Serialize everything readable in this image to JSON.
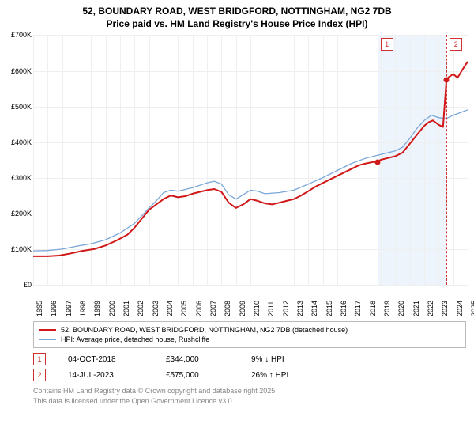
{
  "title_line1": "52, BOUNDARY ROAD, WEST BRIDGFORD, NOTTINGHAM, NG2 7DB",
  "title_line2": "Price paid vs. HM Land Registry's House Price Index (HPI)",
  "chart": {
    "type": "line",
    "background_color": "#ffffff",
    "grid_color": "#efefef",
    "marker_band_color": "#eef4fb",
    "marker_edge_color": "#d03030",
    "x_start_year": 1995,
    "x_end_year": 2025,
    "x_ticks": [
      1995,
      1996,
      1997,
      1998,
      1999,
      2000,
      2001,
      2002,
      2003,
      2004,
      2005,
      2006,
      2007,
      2008,
      2009,
      2010,
      2011,
      2012,
      2013,
      2014,
      2015,
      2016,
      2017,
      2018,
      2019,
      2020,
      2021,
      2022,
      2023,
      2024,
      2025
    ],
    "y_min": 0,
    "y_max": 700,
    "y_step": 100,
    "y_ticks": [
      "£0",
      "£100K",
      "£200K",
      "£300K",
      "£400K",
      "£500K",
      "£600K",
      "£700K"
    ],
    "x_label_fontsize": 9,
    "y_label_fontsize": 9,
    "series": [
      {
        "name": "property",
        "label": "52, BOUNDARY ROAD, WEST BRIDGFORD, NOTTINGHAM, NG2 7DB (detached house)",
        "color": "#d11919",
        "width": 2,
        "data": [
          [
            1995.0,
            80
          ],
          [
            1996.0,
            80
          ],
          [
            1996.8,
            82
          ],
          [
            1997.6,
            88
          ],
          [
            1998.4,
            95
          ],
          [
            1999.2,
            100
          ],
          [
            2000.0,
            110
          ],
          [
            2000.8,
            125
          ],
          [
            2001.5,
            140
          ],
          [
            2002.0,
            160
          ],
          [
            2002.5,
            185
          ],
          [
            2003.0,
            210
          ],
          [
            2003.5,
            225
          ],
          [
            2004.0,
            240
          ],
          [
            2004.5,
            250
          ],
          [
            2005.0,
            245
          ],
          [
            2005.5,
            248
          ],
          [
            2006.0,
            255
          ],
          [
            2006.5,
            260
          ],
          [
            2007.0,
            265
          ],
          [
            2007.5,
            268
          ],
          [
            2008.0,
            260
          ],
          [
            2008.5,
            230
          ],
          [
            2009.0,
            215
          ],
          [
            2009.5,
            225
          ],
          [
            2010.0,
            240
          ],
          [
            2010.5,
            235
          ],
          [
            2011.0,
            228
          ],
          [
            2011.5,
            225
          ],
          [
            2012.0,
            230
          ],
          [
            2012.5,
            235
          ],
          [
            2013.0,
            240
          ],
          [
            2013.5,
            250
          ],
          [
            2014.0,
            262
          ],
          [
            2014.5,
            275
          ],
          [
            2015.0,
            285
          ],
          [
            2015.5,
            295
          ],
          [
            2016.0,
            305
          ],
          [
            2016.5,
            315
          ],
          [
            2017.0,
            325
          ],
          [
            2017.5,
            335
          ],
          [
            2018.0,
            340
          ],
          [
            2018.5,
            344
          ],
          [
            2018.76,
            344
          ],
          [
            2019.0,
            350
          ],
          [
            2019.5,
            355
          ],
          [
            2020.0,
            360
          ],
          [
            2020.5,
            370
          ],
          [
            2021.0,
            395
          ],
          [
            2021.5,
            420
          ],
          [
            2022.0,
            445
          ],
          [
            2022.3,
            455
          ],
          [
            2022.6,
            460
          ],
          [
            2023.0,
            448
          ],
          [
            2023.3,
            442
          ],
          [
            2023.54,
            575
          ],
          [
            2023.7,
            582
          ],
          [
            2024.0,
            590
          ],
          [
            2024.3,
            580
          ],
          [
            2024.6,
            600
          ],
          [
            2025.0,
            625
          ]
        ]
      },
      {
        "name": "hpi",
        "label": "HPI: Average price, detached house, Rushcliffe",
        "color": "#7aa7d8",
        "width": 1.3,
        "data": [
          [
            1995.0,
            95
          ],
          [
            1996.0,
            96
          ],
          [
            1997.0,
            100
          ],
          [
            1998.0,
            108
          ],
          [
            1999.0,
            115
          ],
          [
            2000.0,
            126
          ],
          [
            2001.0,
            145
          ],
          [
            2002.0,
            172
          ],
          [
            2003.0,
            215
          ],
          [
            2003.5,
            235
          ],
          [
            2004.0,
            258
          ],
          [
            2004.5,
            265
          ],
          [
            2005.0,
            262
          ],
          [
            2006.0,
            272
          ],
          [
            2007.0,
            285
          ],
          [
            2007.5,
            290
          ],
          [
            2008.0,
            282
          ],
          [
            2008.5,
            252
          ],
          [
            2009.0,
            240
          ],
          [
            2009.5,
            252
          ],
          [
            2010.0,
            265
          ],
          [
            2010.5,
            262
          ],
          [
            2011.0,
            255
          ],
          [
            2012.0,
            258
          ],
          [
            2013.0,
            265
          ],
          [
            2014.0,
            282
          ],
          [
            2015.0,
            300
          ],
          [
            2016.0,
            320
          ],
          [
            2017.0,
            340
          ],
          [
            2018.0,
            355
          ],
          [
            2019.0,
            365
          ],
          [
            2020.0,
            375
          ],
          [
            2020.5,
            385
          ],
          [
            2021.0,
            410
          ],
          [
            2021.5,
            438
          ],
          [
            2022.0,
            460
          ],
          [
            2022.5,
            475
          ],
          [
            2023.0,
            468
          ],
          [
            2023.5,
            465
          ],
          [
            2024.0,
            475
          ],
          [
            2024.5,
            482
          ],
          [
            2025.0,
            490
          ]
        ]
      }
    ],
    "sale_markers": [
      {
        "n": "1",
        "x": 2018.76,
        "y": 344
      },
      {
        "n": "2",
        "x": 2023.54,
        "y": 575
      }
    ]
  },
  "legend": {
    "items": [
      {
        "color": "#d11919",
        "key": "chart.series.0.label"
      },
      {
        "color": "#7aa7d8",
        "key": "chart.series.1.label"
      }
    ]
  },
  "sales": [
    {
      "n": "1",
      "date": "04-OCT-2018",
      "price": "£344,000",
      "delta": "9% ↓ HPI"
    },
    {
      "n": "2",
      "date": "14-JUL-2023",
      "price": "£575,000",
      "delta": "26% ↑ HPI"
    }
  ],
  "footer_line1": "Contains HM Land Registry data © Crown copyright and database right 2025.",
  "footer_line2": "This data is licensed under the Open Government Licence v3.0."
}
